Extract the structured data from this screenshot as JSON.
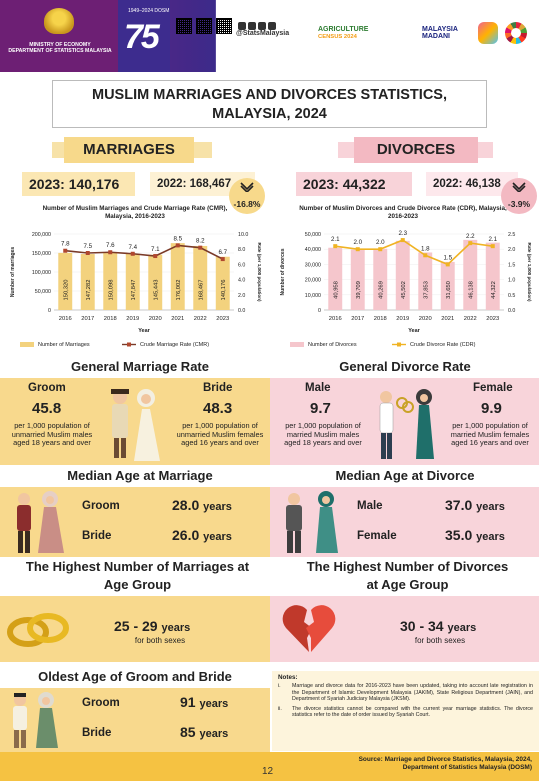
{
  "header": {
    "ministry": "MINISTRY OF ECONOMY\nDEPARTMENT OF STATISTICS MALAYSIA",
    "dosm_tag": "1949–2024 DOSM",
    "logo_number": "75",
    "social_handle": "@StatsMalaysia",
    "census_line1": "AGRICULTURE",
    "census_line2": "CENSUS 2024",
    "madani_line1": "MALAYSIA",
    "madani_line2": "MADANI"
  },
  "title": {
    "line1": "MUSLIM MARRIAGES AND DIVORCES STATISTICS,",
    "line2": "MALAYSIA, 2024"
  },
  "marriages": {
    "heading": "MARRIAGES",
    "total_current": "2023: 140,176",
    "total_previous": "2022: 168,467",
    "change": "-16.8%",
    "chart_title": "Number of Muslim Marriages and Crude Marriage Rate (CMR), Malaysia, 2016-2023",
    "legend_bar": "Number of Marriages",
    "legend_line": "Crude Marriage Rate (CMR)",
    "ylabel_left": "Number of marriages",
    "ylabel_right": "Rate (per 1,000 population)",
    "xlabel": "Year"
  },
  "divorces": {
    "heading": "DIVORCES",
    "total_current": "2023: 44,322",
    "total_previous": "2022: 46,138",
    "change": "-3.9%",
    "chart_title": "Number of Muslim Divorces and Crude Divorce Rate (CDR), Malaysia, 2016-2023",
    "legend_bar": "Number of Divorces",
    "legend_line": "Crude Divorce Rate (CDR)",
    "ylabel_left": "Number of divorces",
    "ylabel_right": "Rate (per 1,000 population)",
    "xlabel": "Year"
  },
  "chart_data": [
    {
      "type": "bar",
      "title": "Number of Muslim Marriages and Crude Marriage Rate (CMR), Malaysia, 2016-2023",
      "categories": [
        "2016",
        "2017",
        "2018",
        "2019",
        "2020",
        "2021",
        "2022",
        "2023"
      ],
      "series": [
        {
          "name": "Number of Marriages",
          "values": [
            150320,
            147282,
            150098,
            147847,
            145443,
            176002,
            168467,
            140176
          ],
          "color": "#f3d27e"
        },
        {
          "name": "Crude Marriage Rate (CMR)",
          "values": [
            7.8,
            7.5,
            7.6,
            7.4,
            7.1,
            8.5,
            8.2,
            6.7
          ],
          "color": "#b0472e",
          "type": "line"
        }
      ],
      "ylim": [
        0,
        200000
      ],
      "ylim_right": [
        0,
        10
      ],
      "yticks": [
        "0",
        "50,000",
        "100,000",
        "150,000",
        "200,000"
      ],
      "yticks_right": [
        "0.0",
        "2.0",
        "4.0",
        "6.0",
        "8.0",
        "10.0"
      ],
      "xlabel": "Year",
      "ylabel": "Number of marriages",
      "ylabel_right": "Rate (per 1,000 population)"
    },
    {
      "type": "bar",
      "title": "Number of Muslim Divorces and Crude Divorce Rate (CDR), Malaysia, 2016-2023",
      "categories": [
        "2016",
        "2017",
        "2018",
        "2019",
        "2020",
        "2021",
        "2022",
        "2023"
      ],
      "series": [
        {
          "name": "Number of Divorces",
          "values": [
            40958,
            39709,
            40269,
            45502,
            37853,
            31650,
            46138,
            44322
          ],
          "color": "#f5c6cc"
        },
        {
          "name": "Crude Divorce Rate (CDR)",
          "values": [
            2.1,
            2.0,
            2.0,
            2.3,
            1.8,
            1.5,
            2.2,
            2.1
          ],
          "color": "#f0b323",
          "type": "line"
        }
      ],
      "ylim": [
        0,
        50000
      ],
      "ylim_right": [
        0,
        2.5
      ],
      "yticks": [
        "0",
        "10,000",
        "20,000",
        "30,000",
        "40,000",
        "50,000"
      ],
      "yticks_right": [
        "0.0",
        "0.5",
        "1.0",
        "1.5",
        "2.0",
        "2.5"
      ],
      "xlabel": "Year",
      "ylabel": "Number of divorces",
      "ylabel_right": "Rate (per 1,000 population)"
    }
  ],
  "bar_labels_m": [
    "150,320",
    "147,282",
    "150,098",
    "147,847",
    "145,443",
    "176,002",
    "168,467",
    "140,176"
  ],
  "bar_labels_d": [
    "40,958",
    "39,709",
    "40,269",
    "45,502",
    "37,853",
    "31,650",
    "46,138",
    "44,322"
  ],
  "rate_labels_m": [
    "7.8",
    "7.5",
    "7.6",
    "7.4",
    "7.1",
    "8.5",
    "8.2",
    "6.7"
  ],
  "rate_labels_d": [
    "2.1",
    "2.0",
    "2.0",
    "2.3",
    "1.8",
    "1.5",
    "2.2",
    "2.1"
  ],
  "general_marriage_rate": {
    "heading": "General Marriage Rate",
    "groom_label": "Groom",
    "groom_value": "45.8",
    "groom_desc": "per 1,000 population of unmarried Muslim males aged 18 years and over",
    "bride_label": "Bride",
    "bride_value": "48.3",
    "bride_desc": "per 1,000 population of unmarried Muslim females aged 16 years and over"
  },
  "general_divorce_rate": {
    "heading": "General Divorce Rate",
    "male_label": "Male",
    "male_value": "9.7",
    "male_desc": "per 1,000 population of married Muslim males aged 18 years and over",
    "female_label": "Female",
    "female_value": "9.9",
    "female_desc": "per 1,000 population of married Muslim females aged 16 years and over"
  },
  "median_marriage": {
    "heading": "Median Age at Marriage",
    "groom_label": "Groom",
    "groom_value": "28.0",
    "bride_label": "Bride",
    "bride_value": "26.0",
    "unit": "years"
  },
  "median_divorce": {
    "heading": "Median Age at Divorce",
    "male_label": "Male",
    "male_value": "37.0",
    "female_label": "Female",
    "female_value": "35.0",
    "unit": "years"
  },
  "highest_marriage": {
    "heading_line1": "The Highest Number of Marriages at",
    "heading_line2": "Age Group",
    "value": "25 - 29",
    "unit": "years",
    "sub": "for both sexes"
  },
  "highest_divorce": {
    "heading_line1": "The Highest Number of Divorces",
    "heading_line2": "at Age Group",
    "value": "30 - 34",
    "unit": "years",
    "sub": "for both sexes"
  },
  "oldest": {
    "heading": "Oldest Age of Groom and Bride",
    "groom_label": "Groom",
    "groom_value": "91",
    "bride_label": "Bride",
    "bride_value": "85",
    "unit": "years"
  },
  "notes": {
    "title": "Notes:",
    "i_index": "i.",
    "i_text": "Marriage and divorce data for 2016-2023 have been updated, taking into account late registration in the Department of Islamic Development Malaysia (JAKIM), State Religious Department (JAIN), and Department of Syariah Judiciary Malaysia (JKSM).",
    "ii_index": "ii.",
    "ii_text": "The divorce statistics cannot be compared with the current year marriage statistics. The divorce statistics refer to the date of order issued by Syariah Court."
  },
  "footer": {
    "source_line1": "Source: Marriage and Divorce Statistics, Malaysia, 2024,",
    "source_line2": "Department of Statistics Malaysia (DOSM)",
    "page": "12"
  }
}
